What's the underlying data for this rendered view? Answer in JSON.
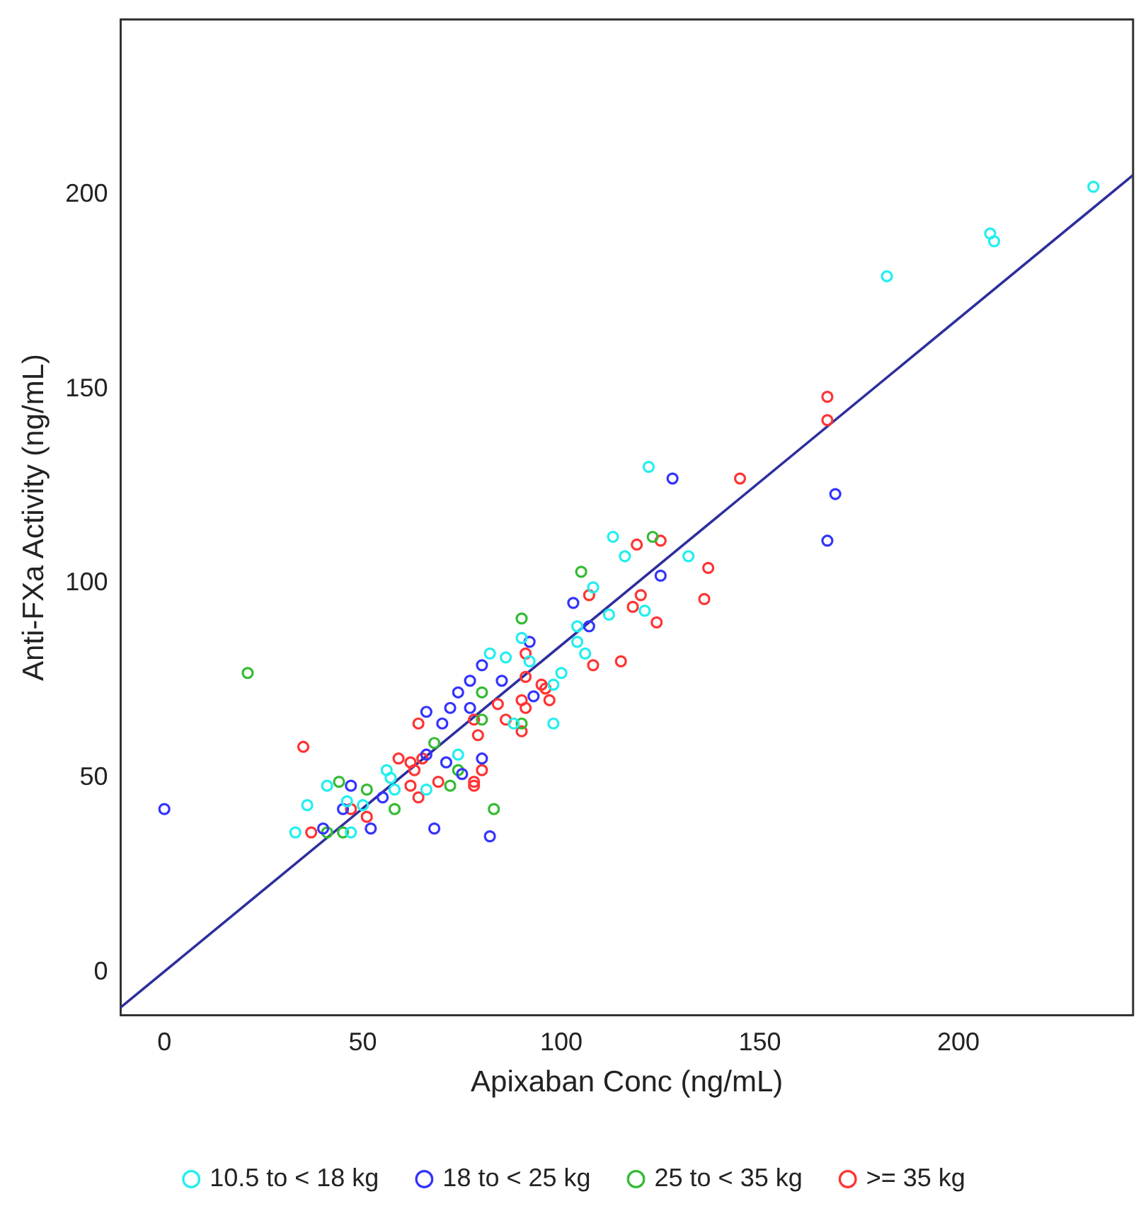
{
  "chart_data": {
    "type": "scatter",
    "xlabel": "Apixaban Conc (ng/mL)",
    "ylabel": "Anti-FXa Activity (ng/mL)",
    "xlim": [
      -11,
      244
    ],
    "ylim": [
      -11,
      245
    ],
    "xticks": [
      0,
      50,
      100,
      150,
      200
    ],
    "yticks": [
      0,
      50,
      100,
      150,
      200
    ],
    "grid": false,
    "legend": "bottom",
    "marker": "circle",
    "series": [
      {
        "name": "10.5 to < 18 kg",
        "color": "#22eeee",
        "x": [
          234,
          208,
          209,
          182,
          122,
          113,
          116,
          132,
          121,
          108,
          112,
          104,
          104,
          106,
          100,
          98,
          90,
          82,
          86,
          92,
          98,
          88,
          74,
          66,
          57,
          58,
          41,
          36,
          33,
          47,
          56,
          46,
          50
        ],
        "values": [
          202,
          190,
          188,
          179,
          130,
          112,
          107,
          107,
          93,
          99,
          92,
          89,
          85,
          82,
          77,
          74,
          86,
          82,
          81,
          80,
          64,
          64,
          56,
          47,
          50,
          47,
          48,
          43,
          36,
          36,
          52,
          44,
          43
        ]
      },
      {
        "name": "18 to < 25 kg",
        "color": "#3333ff",
        "x": [
          128,
          125,
          103,
          107,
          169,
          167,
          92,
          80,
          77,
          85,
          74,
          93,
          72,
          77,
          66,
          70,
          71,
          80,
          75,
          68,
          82,
          47,
          45,
          40,
          52,
          55,
          66,
          0
        ],
        "values": [
          127,
          102,
          95,
          89,
          123,
          111,
          85,
          79,
          75,
          75,
          72,
          71,
          68,
          68,
          67,
          64,
          54,
          55,
          51,
          37,
          35,
          48,
          42,
          37,
          37,
          45,
          56,
          42
        ]
      },
      {
        "name": "25 to < 35 kg",
        "color": "#33bb33",
        "x": [
          123,
          105,
          90,
          80,
          80,
          90,
          68,
          74,
          72,
          83,
          58,
          44,
          51,
          41,
          45,
          21
        ],
        "values": [
          112,
          103,
          91,
          72,
          65,
          64,
          59,
          52,
          48,
          42,
          42,
          49,
          47,
          36,
          36,
          77
        ]
      },
      {
        "name": ">= 35 kg",
        "color": "#ff3333",
        "x": [
          145,
          119,
          125,
          137,
          136,
          120,
          118,
          124,
          107,
          108,
          115,
          167,
          167,
          91,
          91,
          95,
          96,
          97,
          90,
          91,
          84,
          86,
          90,
          78,
          79,
          64,
          59,
          62,
          65,
          63,
          80,
          69,
          78,
          78,
          64,
          62,
          35,
          51,
          37,
          47
        ],
        "values": [
          127,
          110,
          111,
          104,
          96,
          97,
          94,
          90,
          97,
          79,
          80,
          148,
          142,
          82,
          76,
          74,
          73,
          70,
          70,
          68,
          69,
          65,
          62,
          65,
          61,
          64,
          55,
          54,
          55,
          52,
          52,
          49,
          49,
          48,
          45,
          48,
          58,
          40,
          36,
          42
        ]
      },
      {
        "type": "line",
        "marker": "none",
        "color": "#2e2e9e",
        "x": [
          -11,
          244
        ],
        "values": [
          -9,
          205
        ]
      }
    ]
  }
}
